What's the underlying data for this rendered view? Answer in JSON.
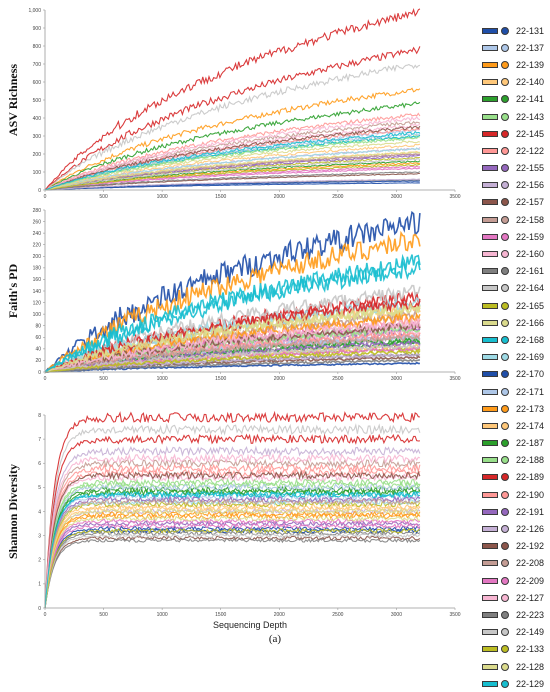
{
  "caption": "(a)",
  "series_colors": [
    "#1f4ea8",
    "#aec7e8",
    "#ff9b1a",
    "#ffc87a",
    "#2ca02c",
    "#98df8a",
    "#d62728",
    "#ff9896",
    "#9467bd",
    "#c5b0d5",
    "#8c564b",
    "#c49c94",
    "#e377c2",
    "#f7b6d2",
    "#7f7f7f",
    "#c7c7c7",
    "#bcbd22",
    "#dbdb8d",
    "#17becf",
    "#9edae5",
    "#1f4ea8",
    "#aec7e8",
    "#ff9b1a",
    "#ffc87a",
    "#2ca02c",
    "#98df8a",
    "#d62728",
    "#ff9896",
    "#9467bd",
    "#c5b0d5",
    "#8c564b",
    "#c49c94",
    "#e377c2",
    "#f7b6d2",
    "#7f7f7f",
    "#c7c7c7",
    "#bcbd22",
    "#dbdb8d",
    "#17becf"
  ],
  "legend": [
    "22-131",
    "22-137",
    "22-139",
    "22-140",
    "22-141",
    "22-143",
    "22-145",
    "22-122",
    "22-155",
    "22-156",
    "22-157",
    "22-158",
    "22-159",
    "22-160",
    "22-161",
    "22-164",
    "22-165",
    "22-166",
    "22-168",
    "22-169",
    "22-170",
    "22-171",
    "22-173",
    "22-174",
    "22-187",
    "22-188",
    "22-189",
    "22-190",
    "22-191",
    "22-126",
    "22-192",
    "22-208",
    "22-209",
    "22-127",
    "22-223",
    "22-149",
    "22-133",
    "22-128",
    "22-129"
  ],
  "chart_data": [
    {
      "type": "line",
      "title": "",
      "ylabel": "ASV Richness",
      "xlabel": "",
      "xlim": [
        0,
        3500
      ],
      "ylim": [
        0,
        1000
      ],
      "x_ticks": [
        "0",
        "500",
        "1000",
        "1500",
        "2000",
        "2500",
        "3000",
        "3500"
      ],
      "y_ticks": [
        "0",
        "100",
        "200",
        "300",
        "400",
        "500",
        "600",
        "700",
        "800",
        "900",
        "1,000"
      ],
      "grid": false,
      "x_max_depth": 3200,
      "series_end_values": [
        40,
        330,
        560,
        250,
        480,
        300,
        780,
        420,
        200,
        230,
        90,
        380,
        120,
        360,
        55,
        700,
        180,
        270,
        300,
        230,
        50,
        310,
        150,
        210,
        160,
        290,
        990,
        340,
        190,
        60,
        350,
        200,
        130,
        400,
        100,
        170,
        140,
        210,
        320
      ]
    },
    {
      "type": "line",
      "title": "",
      "ylabel": "Faith's PD",
      "xlabel": "",
      "xlim": [
        0,
        3500
      ],
      "ylim": [
        0,
        280
      ],
      "x_ticks": [
        "0",
        "500",
        "1000",
        "1500",
        "2000",
        "2500",
        "3000",
        "3500"
      ],
      "y_ticks": [
        "0",
        "20",
        "40",
        "60",
        "80",
        "100",
        "120",
        "140",
        "160",
        "180",
        "200",
        "220",
        "240",
        "260",
        "280"
      ],
      "grid": false,
      "x_max_depth": 3200,
      "series_end_values": [
        260,
        60,
        230,
        110,
        50,
        80,
        130,
        90,
        70,
        60,
        25,
        100,
        80,
        70,
        30,
        140,
        40,
        110,
        190,
        120,
        15,
        60,
        95,
        45,
        55,
        75,
        120,
        65,
        50,
        30,
        80,
        60,
        40,
        85,
        20,
        45,
        35,
        110,
        180
      ]
    },
    {
      "type": "line",
      "title": "",
      "ylabel": "Shannon Diversity",
      "xlabel": "Sequencing Depth",
      "xlim": [
        0,
        3500
      ],
      "ylim": [
        0,
        8
      ],
      "x_ticks": [
        "0",
        "500",
        "1000",
        "1500",
        "2000",
        "2500",
        "3000",
        "3500"
      ],
      "y_ticks": [
        "0",
        "1",
        "2",
        "3",
        "4",
        "5",
        "6",
        "7",
        "8"
      ],
      "grid": false,
      "x_max_depth": 3200,
      "series_end_values": [
        3.3,
        4.6,
        3.8,
        4.2,
        4.9,
        5.1,
        7.9,
        5.6,
        3.5,
        4.0,
        2.9,
        6.0,
        3.6,
        5.4,
        3.1,
        7.4,
        4.3,
        3.7,
        4.7,
        4.4,
        3.2,
        5.0,
        3.9,
        4.1,
        4.8,
        5.2,
        7.0,
        5.8,
        4.5,
        6.5,
        5.5,
        4.4,
        3.4,
        6.2,
        2.8,
        3.0,
        3.2,
        4.0,
        4.7
      ]
    }
  ]
}
